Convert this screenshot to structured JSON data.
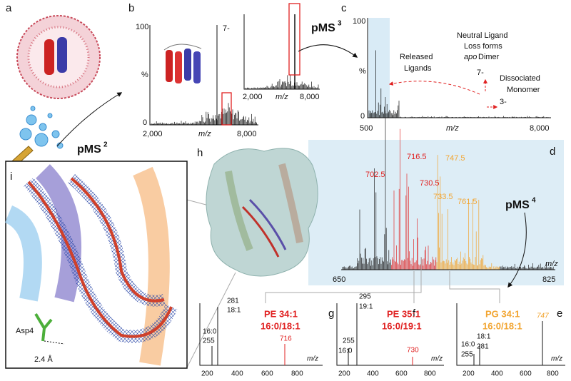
{
  "a": {
    "letter": "a",
    "label": "pMS",
    "label_sup": "2"
  },
  "b": {
    "letter": "b",
    "y_top": "100",
    "y_unit": "%",
    "y_zero": "0",
    "peak_label": "7-",
    "x_left": "2,000",
    "x_label": "m/z",
    "x_right": "8,000",
    "inset": {
      "x_left": "2,000",
      "x_label": "m/z",
      "x_right": "8,000"
    }
  },
  "arrow_label": {
    "text": "pMS",
    "sup": "3"
  },
  "c": {
    "letter": "c",
    "y_top": "100",
    "y_unit": "%",
    "y_zero": "0",
    "released": [
      "Released",
      "Ligands"
    ],
    "neutral": [
      "Neutral Ligand",
      "Loss forms"
    ],
    "apo": "apo",
    "dimer": "Dimer",
    "dimer_charge": "7-",
    "dissociated": [
      "Dissociated",
      "Monomer"
    ],
    "monomer_charge": "3-",
    "x_left": "500",
    "x_label": "m/z",
    "x_right": "8,000"
  },
  "d": {
    "letter": "d",
    "peaks_red": [
      "702.5",
      "716.5",
      "730.5"
    ],
    "peaks_orange": [
      "747.5",
      "733.5",
      "761.5"
    ],
    "x_left": "650",
    "x_label": "m/z",
    "x_right": "825",
    "label": "pMS",
    "label_sup": "4"
  },
  "h": {
    "letter": "h"
  },
  "i": {
    "letter": "i",
    "residue": "Asp4",
    "distance": "2.4 Å"
  },
  "g": {
    "letter": "g",
    "lipid": "PE 34:1",
    "chains": "16:0/18:1",
    "parent": "716",
    "frag1": [
      "16:0",
      "255"
    ],
    "frag2": [
      "281",
      "18:1"
    ],
    "x_label": "m/z",
    "ticks": [
      "200",
      "400",
      "600",
      "800"
    ]
  },
  "f": {
    "letter": "f",
    "lipid": "PE 35:1",
    "chains": "16:0/19:1",
    "parent": "730",
    "frag1": [
      "255",
      "16:0"
    ],
    "frag2": [
      "295",
      "19:1"
    ],
    "x_label": "m/z",
    "ticks": [
      "200",
      "400",
      "600",
      "800"
    ]
  },
  "e": {
    "letter": "e",
    "lipid": "PG 34:1",
    "chains": "16:0/18:1",
    "parent": "747",
    "frag1": [
      "16:0",
      "255"
    ],
    "frag2": [
      "18:1",
      "281"
    ],
    "x_label": "m/z",
    "ticks": [
      "200",
      "400",
      "600",
      "800"
    ]
  }
}
